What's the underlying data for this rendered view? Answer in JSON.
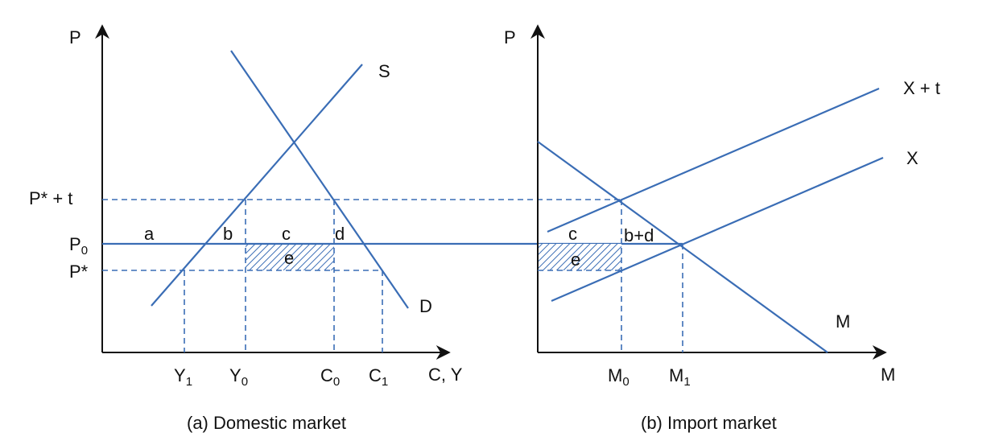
{
  "colors": {
    "curve": "#3a6db5",
    "axis": "#111111",
    "hatch": "#3a6db5"
  },
  "panel_a": {
    "caption": "(a) Domestic market",
    "y_axis_label": "P",
    "x_axis_label": "C, Y",
    "price_labels": {
      "p_star_t": "P* +  t",
      "p0_main": "P",
      "p0_sub": "0",
      "p_star": "P*"
    },
    "curve_labels": {
      "supply": "S",
      "demand": "D"
    },
    "quantity_labels": {
      "y1_main": "Y",
      "y1_sub": "1",
      "y0_main": "Y",
      "y0_sub": "0",
      "c0_main": "C",
      "c0_sub": "0",
      "c1_main": "C",
      "c1_sub": "1"
    },
    "area_labels": {
      "a": "a",
      "b": "b",
      "c": "c",
      "d": "d",
      "e": "e"
    }
  },
  "panel_b": {
    "caption": "(b) Import market",
    "y_axis_label": "P",
    "x_axis_label": "M",
    "curve_labels": {
      "x_plus_t": "X + t",
      "x": "X",
      "m": "M"
    },
    "quantity_labels": {
      "m0_main": "M",
      "m0_sub": "0",
      "m1_main": "M",
      "m1_sub": "1"
    },
    "area_labels": {
      "c": "c",
      "bd": "b+d",
      "e": "e"
    }
  }
}
